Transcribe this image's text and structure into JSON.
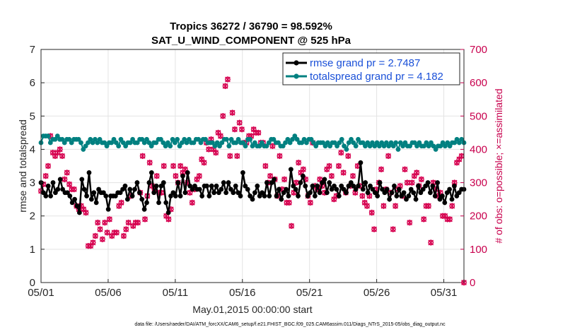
{
  "chart_data": {
    "type": "line",
    "title": "Tropics 36272 / 36790 = 98.592%",
    "subtitle": "SAT_U_WIND_COMPONENT @ 525 hPa",
    "xlabel": "May.01,2015 00:00:00 start",
    "ylabel": "rmse and totalspread",
    "ylabel_right": "# of obs: o=possible; ×=assimilated",
    "footnote": "data file: /Users/raeder/DAI/ATM_forcXX/CAM6_setup/f.e21.FHIST_BGC.f09_025.CAM6assim.011/Diags_NTrS_2015-05/obs_diag_output.nc",
    "xlim": [
      1,
      32.5
    ],
    "ylim": [
      0,
      7
    ],
    "ylim_right": [
      0,
      700
    ],
    "x_ticks": [
      1,
      6,
      11,
      16,
      21,
      26,
      31
    ],
    "x_tick_labels": [
      "05/01",
      "05/06",
      "05/11",
      "05/16",
      "05/21",
      "05/26",
      "05/31"
    ],
    "y_ticks": [
      0,
      1,
      2,
      3,
      4,
      5,
      6,
      7
    ],
    "y_tick_labels": [
      "0",
      "1",
      "2",
      "3",
      "4",
      "5",
      "6",
      "7"
    ],
    "y_right_ticks": [
      0,
      100,
      200,
      300,
      400,
      500,
      600,
      700
    ],
    "y_right_tick_labels": [
      "0",
      "100",
      "200",
      "300",
      "400",
      "500",
      "600",
      "700"
    ],
    "grid": true,
    "legend_position": "top-right",
    "colors": {
      "rmse": "#000000",
      "totalspread": "#008080",
      "obs": "#d6004f",
      "tick_right": "#c8004d",
      "legend_text": "#1a50d8"
    },
    "series": [
      {
        "name": "rmse grand pr = 2.7487",
        "axis": "left",
        "values": [
          3.0,
          2.7,
          2.6,
          2.9,
          2.6,
          3.0,
          2.7,
          2.8,
          3.1,
          2.8,
          2.7,
          2.7,
          2.6,
          2.4,
          2.5,
          2.3,
          2.1,
          3.1,
          2.8,
          2.6,
          3.3,
          2.5,
          2.7,
          2.4,
          2.8,
          2.7,
          2.7,
          2.6,
          2.2,
          2.6,
          2.6,
          2.6,
          2.7,
          2.7,
          2.8,
          2.9,
          2.5,
          2.8,
          2.6,
          2.8,
          3.0,
          2.7,
          2.5,
          2.2,
          2.4,
          3.0,
          3.3,
          2.7,
          2.9,
          2.4,
          2.9,
          3.0,
          2.4,
          2.1,
          2.6,
          2.7,
          2.6,
          3.0,
          2.6,
          3.2,
          2.7,
          3.3,
          2.9,
          2.8,
          2.9,
          2.8,
          2.8,
          2.6,
          2.9,
          2.9,
          2.6,
          2.9,
          2.7,
          2.9,
          2.7,
          2.8,
          3.0,
          2.7,
          3.0,
          2.8,
          2.7,
          2.9,
          2.7,
          2.6,
          3.3,
          2.9,
          2.8,
          2.6,
          2.5,
          2.7,
          2.9,
          2.6,
          2.7,
          2.6,
          3.0,
          2.6,
          3.0,
          3.1,
          2.6,
          2.8,
          2.5,
          2.7,
          2.8,
          2.6,
          3.4,
          2.9,
          2.8,
          2.6,
          3.0,
          3.2,
          2.9,
          2.6,
          2.7,
          2.9,
          2.6,
          2.9,
          2.7,
          3.0,
          3.1,
          2.7,
          3.0,
          2.8,
          2.9,
          2.8,
          2.6,
          2.9,
          2.8,
          2.7,
          2.9,
          3.0,
          2.9,
          2.8,
          2.9,
          3.6,
          2.8,
          3.0,
          2.7,
          2.9,
          2.8,
          2.7,
          2.6,
          3.0,
          2.8,
          2.7,
          2.8,
          2.5,
          2.7,
          2.9,
          2.6,
          2.8,
          2.6,
          2.7,
          2.5,
          2.6,
          2.8,
          2.7,
          2.5,
          2.9,
          2.7,
          2.8,
          2.9,
          3.0,
          2.7,
          2.9,
          2.6,
          3.0,
          2.5,
          2.6,
          2.4,
          2.7,
          2.8,
          2.5,
          2.9,
          2.6,
          2.7,
          2.8,
          2.8
        ]
      },
      {
        "name": "totalspread grand pr = 4.182",
        "axis": "left",
        "values": [
          4.2,
          4.4,
          4.4,
          4.4,
          4.2,
          4.3,
          4.3,
          4.4,
          4.3,
          4.3,
          4.2,
          4.3,
          4.3,
          4.2,
          4.3,
          4.3,
          4.3,
          4.2,
          4.0,
          4.1,
          4.2,
          4.3,
          4.2,
          4.3,
          4.2,
          4.3,
          4.2,
          4.2,
          4.1,
          4.2,
          4.2,
          4.3,
          4.2,
          4.1,
          4.3,
          4.2,
          4.1,
          4.2,
          4.2,
          4.3,
          4.2,
          4.2,
          4.3,
          4.3,
          4.2,
          4.3,
          4.2,
          4.1,
          4.2,
          4.2,
          4.3,
          4.3,
          4.2,
          4.1,
          4.2,
          4.1,
          4.3,
          4.2,
          4.3,
          4.1,
          4.2,
          4.3,
          4.2,
          4.3,
          4.2,
          4.2,
          4.3,
          4.3,
          4.2,
          4.3,
          4.3,
          4.2,
          4.2,
          4.2,
          4.1,
          4.2,
          4.1,
          4.2,
          4.3,
          4.3,
          4.1,
          4.3,
          4.2,
          4.2,
          4.3,
          4.2,
          4.2,
          4.1,
          4.3,
          4.3,
          4.1,
          4.2,
          4.1,
          4.1,
          4.2,
          4.1,
          4.1,
          4.2,
          4.3,
          4.3,
          4.2,
          4.2,
          4.1,
          4.1,
          4.2,
          4.3,
          4.2,
          4.3,
          4.4,
          4.3,
          4.2,
          4.2,
          4.3,
          4.2,
          4.3,
          4.3,
          4.2,
          4.1,
          4.2,
          4.2,
          4.2,
          4.1,
          4.2,
          4.1,
          4.2,
          4.2,
          4.1,
          4.2,
          4.3,
          4.1,
          4.0,
          4.2,
          4.3,
          4.2,
          4.1,
          4.3,
          4.2,
          4.2,
          4.1,
          4.2,
          4.1,
          4.2,
          4.1,
          4.2,
          4.1,
          4.2,
          4.1,
          4.2,
          4.1,
          4.2,
          4.1,
          4.2,
          4.0,
          4.2,
          4.1,
          4.2,
          4.1,
          4.1,
          4.2,
          4.2,
          4.1,
          4.2,
          4.1,
          4.1,
          4.2,
          4.1,
          4.2,
          4.1,
          4.0,
          4.1,
          4.1,
          4.2,
          4.1,
          4.2,
          4.1,
          4.2,
          4.2,
          4.3,
          4.2,
          4.3,
          4.2
        ]
      }
    ],
    "obs_series": {
      "name": "# of obs (possible / assimilated)",
      "axis": "right",
      "values": [
        275,
        295,
        320,
        350,
        440,
        390,
        380,
        390,
        400,
        380,
        310,
        330,
        295,
        280,
        280,
        230,
        220,
        230,
        220,
        210,
        110,
        110,
        120,
        140,
        180,
        160,
        130,
        180,
        150,
        190,
        140,
        150,
        150,
        230,
        240,
        140,
        160,
        180,
        260,
        170,
        180,
        180,
        270,
        380,
        190,
        260,
        360,
        290,
        280,
        320,
        270,
        270,
        350,
        200,
        190,
        220,
        350,
        320,
        300,
        350,
        330,
        340,
        300,
        270,
        240,
        280,
        310,
        320,
        370,
        360,
        420,
        400,
        430,
        400,
        390,
        450,
        440,
        500,
        590,
        610,
        380,
        510,
        460,
        380,
        480,
        460,
        420,
        420,
        440,
        440,
        460,
        450,
        450,
        420,
        420,
        350,
        300,
        320,
        410,
        310,
        260,
        380,
        280,
        310,
        240,
        240,
        170,
        270,
        300,
        360,
        330,
        340,
        310,
        260,
        240,
        420,
        290,
        280,
        310,
        290,
        270,
        340,
        350,
        320,
        250,
        260,
        350,
        390,
        330,
        270,
        380,
        290,
        320,
        270,
        350,
        290,
        260,
        240,
        230,
        260,
        210,
        160,
        280,
        300,
        340,
        230,
        280,
        380,
        270,
        160,
        230,
        280,
        290,
        260,
        340,
        300,
        180,
        300,
        320,
        330,
        290,
        310,
        190,
        230,
        230,
        120,
        300,
        280,
        260,
        270,
        200,
        200,
        190,
        190,
        230,
        300,
        360,
        370,
        380,
        0
      ]
    }
  }
}
